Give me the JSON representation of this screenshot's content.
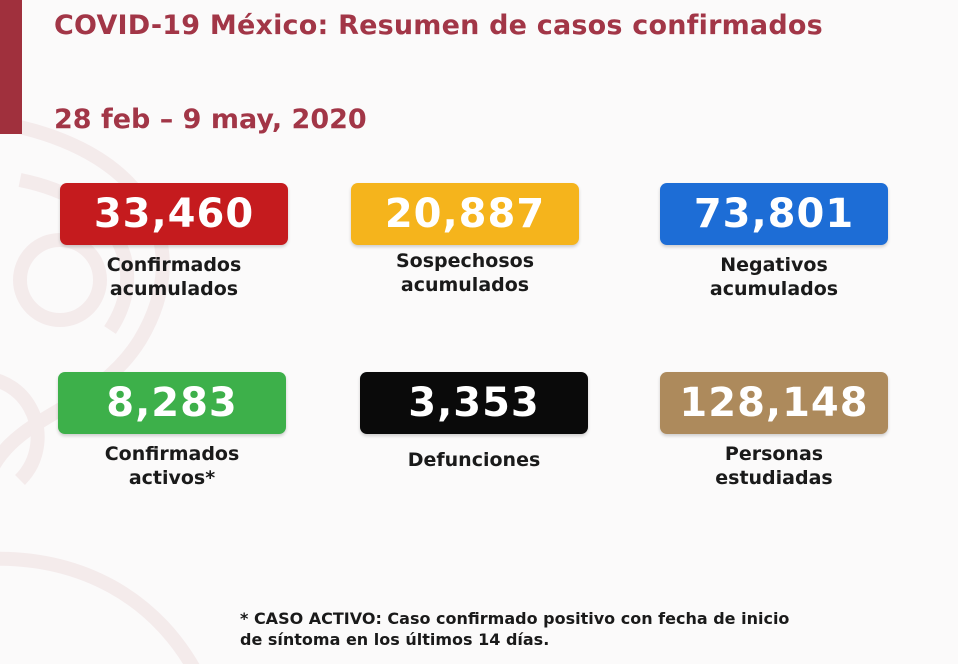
{
  "header": {
    "title": "COVID-19 México: Resumen de casos confirmados",
    "date_range": "28 feb – 9 may, 2020"
  },
  "colors": {
    "accent": "#a0303d",
    "title_text": "#a23647",
    "confirmed": "#c51b1e",
    "suspected": "#f5b41c",
    "negative": "#1d6dd6",
    "active": "#3db04a",
    "deaths": "#0a0a0a",
    "studied": "#ad8a5c"
  },
  "stats": [
    {
      "id": "confirmados",
      "value": "33,460",
      "label_line1": "Confirmados",
      "label_line2": "acumulados"
    },
    {
      "id": "sospechosos",
      "value": "20,887",
      "label_line1": "Sospechosos",
      "label_line2": "acumulados"
    },
    {
      "id": "negativos",
      "value": "73,801",
      "label_line1": "Negativos",
      "label_line2": "acumulados"
    },
    {
      "id": "activos",
      "value": "8,283",
      "label_line1": "Confirmados",
      "label_line2": "activos*"
    },
    {
      "id": "defunciones",
      "value": "3,353",
      "label_line1": "Defunciones",
      "label_line2": ""
    },
    {
      "id": "estudiadas",
      "value": "128,148",
      "label_line1": "Personas",
      "label_line2": "estudiadas"
    }
  ],
  "footnote": {
    "line1": "* CASO ACTIVO: Caso confirmado positivo con fecha de inicio",
    "line2": "de síntoma en los últimos 14 días."
  }
}
